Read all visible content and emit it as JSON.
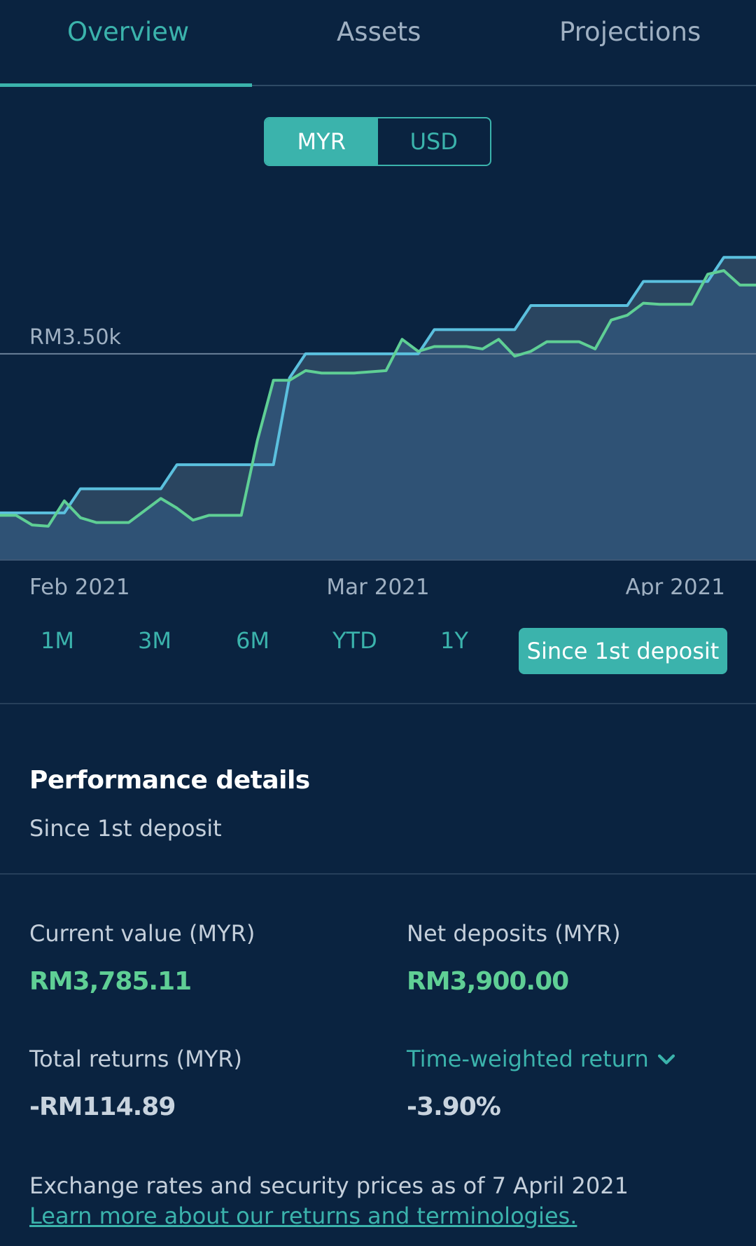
{
  "tabs": [
    {
      "label": "Overview",
      "active": true
    },
    {
      "label": "Assets",
      "active": false
    },
    {
      "label": "Projections",
      "active": false
    }
  ],
  "currency_toggle": {
    "options": [
      "MYR",
      "USD"
    ],
    "selected": "MYR"
  },
  "chart_data": {
    "type": "area",
    "y_reference_label": "RM3.50k",
    "x_tick_labels": [
      "Feb 2021",
      "Mar 2021",
      "Apr 2021"
    ],
    "series": [
      {
        "color": "#5bc0de",
        "values": [
          2840,
          2840,
          2840,
          2840,
          2840,
          2940,
          2940,
          2940,
          2940,
          2940,
          2940,
          3040,
          3040,
          3040,
          3040,
          3040,
          3040,
          3040,
          3400,
          3500,
          3500,
          3500,
          3500,
          3500,
          3500,
          3500,
          3500,
          3600,
          3600,
          3600,
          3600,
          3600,
          3600,
          3700,
          3700,
          3700,
          3700,
          3700,
          3700,
          3700,
          3800,
          3800,
          3800,
          3800,
          3800,
          3900,
          3900,
          3900
        ]
      },
      {
        "color": "#5fcf95",
        "values": [
          2830,
          2830,
          2790,
          2785,
          2890,
          2820,
          2800,
          2800,
          2800,
          2850,
          2900,
          2860,
          2810,
          2830,
          2830,
          2830,
          3140,
          3390,
          3390,
          3430,
          3420,
          3420,
          3420,
          3425,
          3430,
          3560,
          3510,
          3530,
          3530,
          3530,
          3520,
          3560,
          3490,
          3510,
          3550,
          3550,
          3550,
          3520,
          3640,
          3660,
          3710,
          3705,
          3705,
          3705,
          3830,
          3845,
          3785,
          3785
        ]
      }
    ],
    "legend": "none",
    "grid": "single reference line"
  },
  "range_options": [
    "1M",
    "3M",
    "6M",
    "YTD",
    "1Y",
    "Since 1st deposit"
  ],
  "range_selected": "Since 1st deposit",
  "performance": {
    "title": "Performance details",
    "subtitle": "Since 1st deposit",
    "current_value_label": "Current value (MYR)",
    "current_value": "RM3,785.11",
    "net_deposits_label": "Net deposits (MYR)",
    "net_deposits": "RM3,900.00",
    "total_returns_label": "Total returns (MYR)",
    "total_returns": "-RM114.89",
    "twr_label": "Time-weighted return",
    "twr_value": "-3.90%"
  },
  "footer": {
    "note": "Exchange rates and security prices as of 7 April 2021",
    "link": "Learn more about our returns and terminologies."
  }
}
